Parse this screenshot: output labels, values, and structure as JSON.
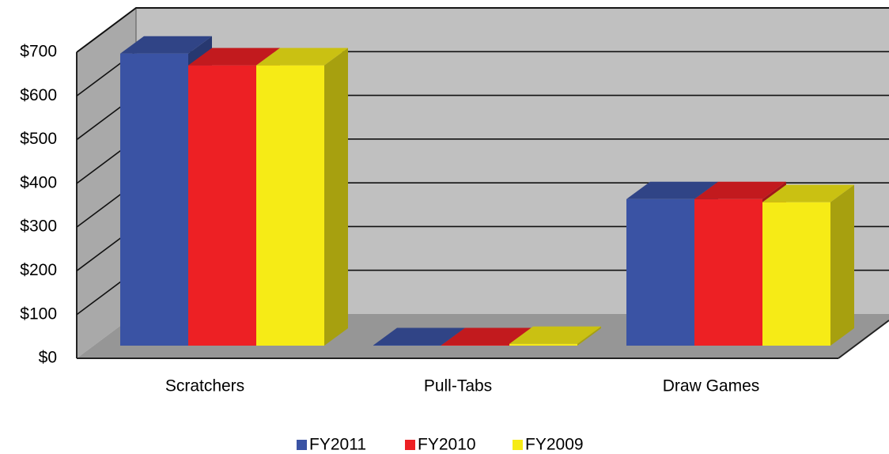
{
  "chart_data": {
    "type": "bar3d",
    "categories": [
      "Scratchers",
      "Pull-Tabs",
      "Draw Games"
    ],
    "series": [
      {
        "name": "FY2011",
        "color": "#3a53a4",
        "values": [
          668,
          1,
          335
        ]
      },
      {
        "name": "FY2010",
        "color": "#ed2024",
        "values": [
          641,
          1,
          335
        ]
      },
      {
        "name": "FY2009",
        "color": "#f6eb16",
        "values": [
          641,
          4,
          328
        ]
      }
    ],
    "ylim": [
      0,
      700
    ],
    "yticks": [
      {
        "value": 0,
        "label": "$0"
      },
      {
        "value": 100,
        "label": "$100"
      },
      {
        "value": 200,
        "label": "$200"
      },
      {
        "value": 300,
        "label": "$300"
      },
      {
        "value": 400,
        "label": "$400"
      },
      {
        "value": 500,
        "label": "$500"
      },
      {
        "value": 600,
        "label": "$600"
      },
      {
        "value": 700,
        "label": "$700"
      }
    ],
    "grid": true,
    "legend": "bottom"
  }
}
